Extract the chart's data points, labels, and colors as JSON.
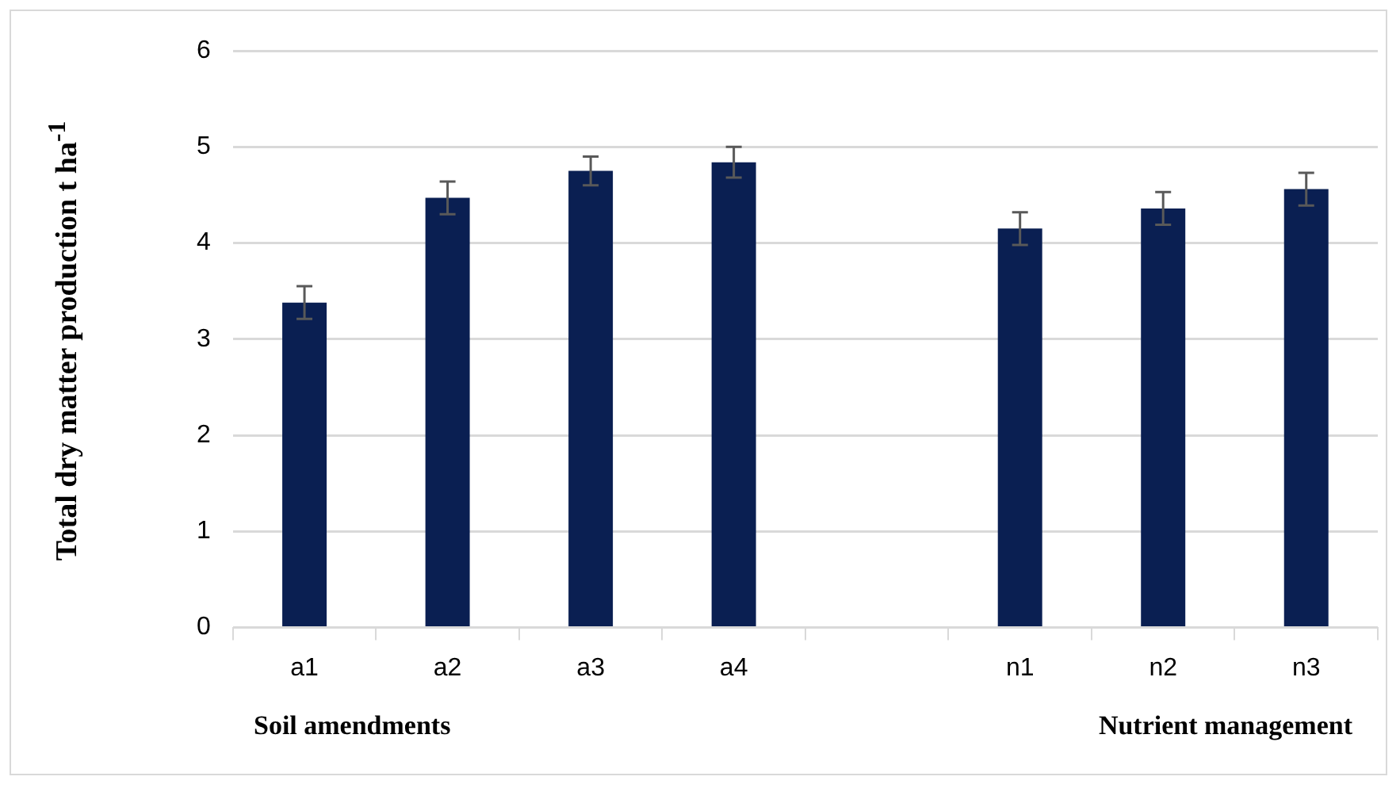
{
  "chart_data": {
    "type": "bar",
    "ylabel": "Total dry matter production t ha$^{-1}$",
    "categories": [
      "a1",
      "a2",
      "a3",
      "a4",
      null,
      "n1",
      "n2",
      "n3"
    ],
    "values": [
      3.38,
      4.47,
      4.75,
      4.84,
      null,
      4.15,
      4.36,
      4.56
    ],
    "errors": [
      0.17,
      0.17,
      0.15,
      0.16,
      null,
      0.17,
      0.17,
      0.17
    ],
    "color": "#0a1f52",
    "ylim": [
      0,
      6
    ],
    "yticks": [
      0,
      1,
      2,
      3,
      4,
      5,
      6
    ],
    "grid": "y",
    "legend": false,
    "annotations": [
      "Soil amendments",
      "Nutrient management"
    ]
  }
}
